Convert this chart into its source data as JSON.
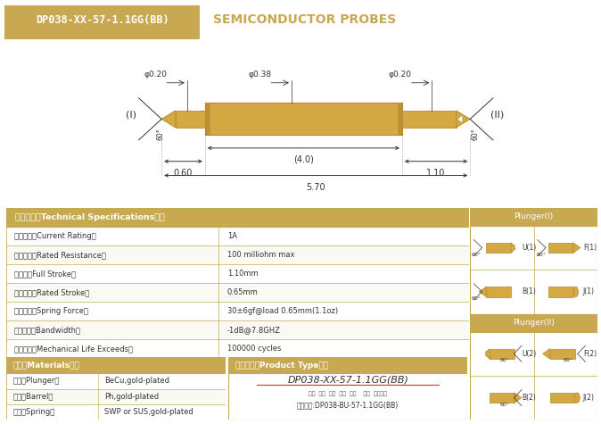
{
  "title_box_text": "DP038-XX-57-1.1GG(BB)",
  "title_box_color": "#C8A951",
  "title_right_text": "SEMICONDUCTOR PROBES",
  "title_right_color": "#C8A951",
  "bg_color": "#FFFFFF",
  "border_color": "#C8A951",
  "probe_gold_color": "#D4A843",
  "probe_dark_gold": "#B8882E",
  "dim_color": "#333333",
  "table_header_bg": "#C8A951",
  "specs": [
    [
      "技术要求（Technical Specifications）：",
      ""
    ],
    [
      "额定电流（Current Rating）",
      "1A"
    ],
    [
      "额定电阻（Rated Resistance）",
      "100 milliohm max"
    ],
    [
      "满行程（Full Stroke）",
      "1.10mm"
    ],
    [
      "额定行程（Rated Stroke）",
      "0.65mm"
    ],
    [
      "额定弹力（Spring Force）",
      "30±6gf@load 0.65mm(1.1oz)"
    ],
    [
      "频率带宽（Bandwidth）",
      "-1dB@7.8GHZ"
    ],
    [
      "测试寿命（Mechanical Life Exceeds）",
      "100000 cycles"
    ]
  ],
  "materials_header": "材质（Materials）：",
  "materials": [
    [
      "针头（Plunger）",
      "BeCu,gold-plated"
    ],
    [
      "针管（Barrel）",
      "Ph,gold-plated"
    ],
    [
      "弹簧（Spring）",
      "SWP or SUS,gold-plated"
    ]
  ],
  "product_type_header": "成品型号（Product Type）：",
  "product_type_model": "DP038-XX-57-1.1GG(BB)",
  "product_type_labels": "系列  规格  头型  总长  弹力    镀金  针头材质",
  "product_type_example": "订购举例:DP038-BU-57-1.1GG(BB)",
  "plunger1_header": "Plunger(I)",
  "plunger2_header": "Plunger(II)",
  "dim_phi020_left": "φ0.20",
  "dim_phi038": "φ0.38",
  "dim_phi020_right": "φ0.20",
  "dim_40": "(4.0)",
  "dim_570": "5.70",
  "dim_060": "0.60",
  "dim_110": "1.10"
}
